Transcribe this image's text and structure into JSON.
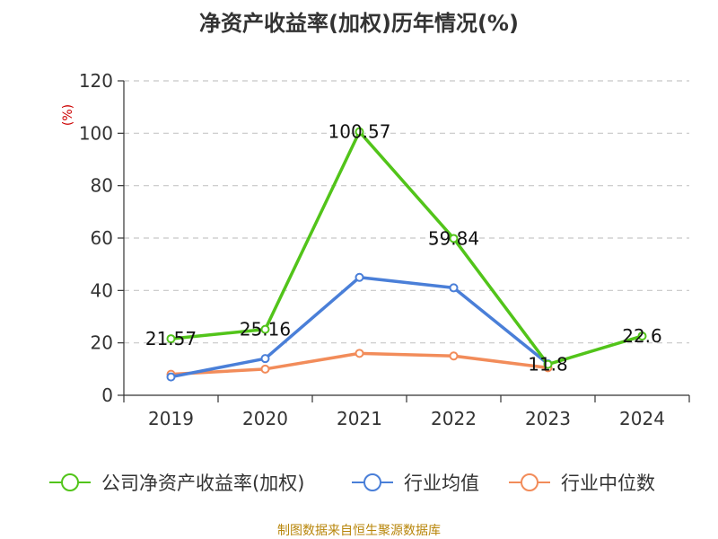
{
  "chart_data": {
    "type": "line",
    "title": "净资产收益率(加权)历年情况(%)",
    "unit_label": "(%)",
    "categories": [
      "2019",
      "2020",
      "2021",
      "2022",
      "2023",
      "2024"
    ],
    "ylim": [
      0,
      120
    ],
    "yticks": [
      0,
      20,
      40,
      60,
      80,
      100,
      120
    ],
    "grid": true,
    "legend_position": "bottom",
    "series": [
      {
        "name": "公司净资产收益率(加权)",
        "color": "#52c41a",
        "values": [
          21.57,
          25.16,
          100.57,
          59.84,
          11.8,
          22.6
        ],
        "labels": [
          "21.57",
          "25.16",
          "100.57",
          "59.84",
          "11.8",
          "22.6"
        ]
      },
      {
        "name": "行业均值",
        "color": "#4a7fd8",
        "values": [
          7,
          14,
          45,
          41,
          12,
          null
        ]
      },
      {
        "name": "行业中位数",
        "color": "#f28c5a",
        "values": [
          8,
          10,
          16,
          15,
          10.5,
          null
        ]
      }
    ],
    "source": "制图数据来自恒生聚源数据库"
  }
}
